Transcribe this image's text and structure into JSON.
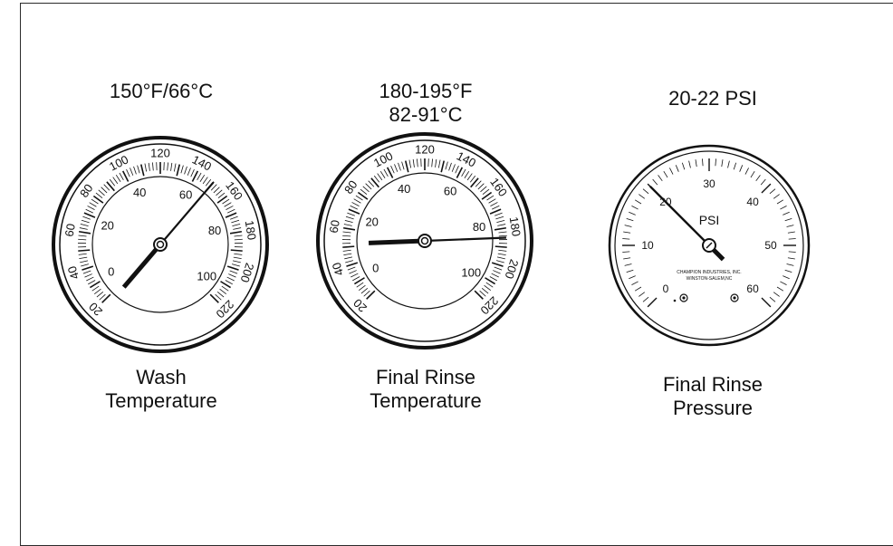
{
  "gauges": [
    {
      "id": "wash",
      "setting_lines": [
        "150°F/66°C"
      ],
      "caption_lines": [
        "Wash",
        "Temperature"
      ],
      "kind": "thermometer",
      "reading_f": 150,
      "outer_scale": [
        "20",
        "40",
        "60",
        "80",
        "100",
        "120",
        "140",
        "160",
        "180",
        "200",
        "220"
      ],
      "inner_scale": [
        "0",
        "20",
        "40",
        "60",
        "80",
        "100"
      ]
    },
    {
      "id": "rinse-temp",
      "setting_lines": [
        "180-195°F",
        "82-91°C"
      ],
      "caption_lines": [
        "Final Rinse",
        "Temperature"
      ],
      "kind": "thermometer",
      "reading_f": 185,
      "outer_scale": [
        "20",
        "40",
        "60",
        "80",
        "100",
        "120",
        "140",
        "160",
        "180",
        "200",
        "220"
      ],
      "inner_scale": [
        "0",
        "20",
        "40",
        "60",
        "80",
        "100"
      ]
    },
    {
      "id": "rinse-pressure",
      "setting_lines": [
        "20-22 PSI"
      ],
      "caption_lines": [
        "Final Rinse",
        "Pressure"
      ],
      "kind": "pressure",
      "reading_psi": 20,
      "unit": "PSI",
      "scale": [
        "0",
        "10",
        "20",
        "30",
        "40",
        "50",
        "60"
      ],
      "maker_lines": [
        "CHAMPION INDUSTRIES, INC.",
        "WINSTON-SALEM,NC"
      ]
    }
  ]
}
